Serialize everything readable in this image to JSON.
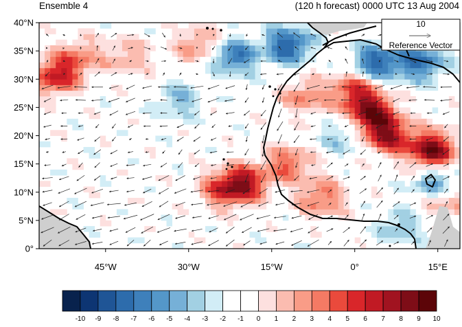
{
  "header": {
    "left_title": "Ensemble 4",
    "right_title": "(120 h forecast) 0000 UTC 13 Aug 2004"
  },
  "axes": {
    "y_ticks": [
      "0°",
      "5°N",
      "10°N",
      "15°N",
      "20°N",
      "25°N",
      "30°N",
      "35°N",
      "40°N"
    ],
    "y_values": [
      0,
      5,
      10,
      15,
      20,
      25,
      30,
      35,
      40
    ],
    "x_ticks": [
      "45°W",
      "30°W",
      "15°W",
      "0°",
      "15°E"
    ],
    "x_values": [
      -45,
      -30,
      -15,
      0,
      15
    ],
    "lon_range": [
      -57,
      19
    ],
    "lat_range": [
      0,
      40
    ]
  },
  "reference_vector": {
    "magnitude_label": "10",
    "label": "Reference Vector"
  },
  "colorbar": {
    "levels": [
      "-10",
      "-9",
      "-8",
      "-7",
      "-6",
      "-5",
      "-4",
      "-3",
      "-2",
      "-1",
      "0",
      "1",
      "2",
      "3",
      "4",
      "5",
      "6",
      "7",
      "8",
      "9",
      "10"
    ],
    "colors": [
      "#08224d",
      "#0d3573",
      "#1f5596",
      "#2d6cac",
      "#3e80bb",
      "#5497c9",
      "#76b0d7",
      "#a2d0e3",
      "#d2edf6",
      "#ffffff",
      "#ffffff",
      "#fde0df",
      "#fbbcb0",
      "#f99c87",
      "#f47a64",
      "#ea4a3c",
      "#d9262a",
      "#c11a24",
      "#a11320",
      "#7e0d17",
      "#5c0508"
    ]
  },
  "chart_data": {
    "type": "heatmap",
    "title": "",
    "xlabel": "",
    "ylabel": "",
    "lon_range": [
      -57,
      19
    ],
    "lat_range": [
      0,
      40
    ],
    "color_range": [
      -10,
      10
    ],
    "anomaly_centers": [
      {
        "lon": -54,
        "lat": 30.5,
        "value": 7
      },
      {
        "lon": -50,
        "lat": 34,
        "value": 4
      },
      {
        "lon": -41,
        "lat": 34,
        "value": 3
      },
      {
        "lon": -28,
        "lat": 36,
        "value": 4
      },
      {
        "lon": -20,
        "lat": 11.5,
        "value": 8
      },
      {
        "lon": -24,
        "lat": 10.5,
        "value": 5
      },
      {
        "lon": -12,
        "lat": 15,
        "value": 5
      },
      {
        "lon": -9,
        "lat": 27,
        "value": 4
      },
      {
        "lon": 3,
        "lat": 24,
        "value": 9
      },
      {
        "lon": 6,
        "lat": 20,
        "value": 8
      },
      {
        "lon": 14,
        "lat": 17.5,
        "value": 10
      },
      {
        "lon": 0,
        "lat": 28,
        "value": 6
      },
      {
        "lon": 16,
        "lat": 9,
        "value": 6
      },
      {
        "lon": -6,
        "lat": 9,
        "value": 5
      },
      {
        "lon": -22,
        "lat": 34,
        "value": -6
      },
      {
        "lon": -12,
        "lat": 36,
        "value": -7
      },
      {
        "lon": 4,
        "lat": 33,
        "value": -7
      },
      {
        "lon": 12,
        "lat": 33,
        "value": -6
      },
      {
        "lon": -32,
        "lat": 26,
        "value": -3
      },
      {
        "lon": 15,
        "lat": 11,
        "value": -7
      },
      {
        "lon": -2,
        "lat": 20,
        "value": -3
      },
      {
        "lon": 8,
        "lat": 4,
        "value": -3
      }
    ]
  }
}
